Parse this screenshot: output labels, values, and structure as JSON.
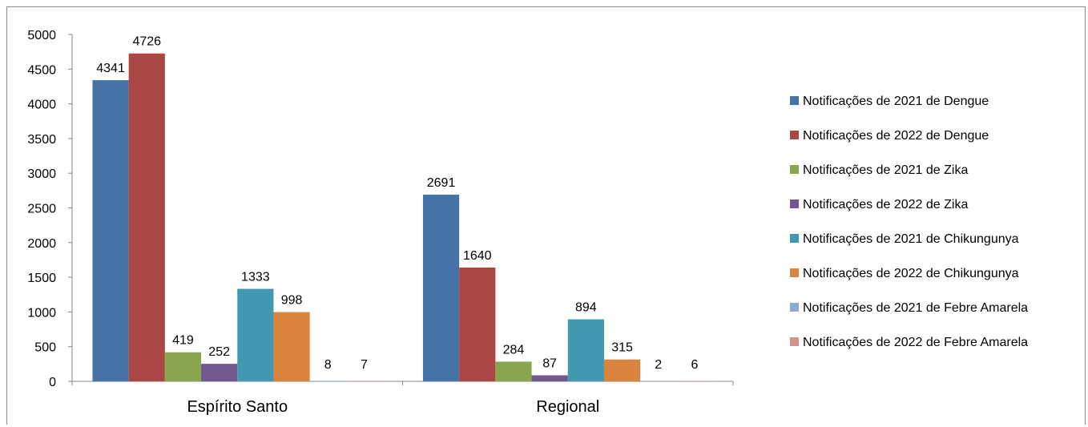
{
  "chart_data": {
    "type": "bar",
    "title": "",
    "xlabel": "",
    "ylabel": "",
    "ylim": [
      0,
      5000
    ],
    "yticks": [
      0,
      500,
      1000,
      1500,
      2000,
      2500,
      3000,
      3500,
      4000,
      4500,
      5000
    ],
    "grid": false,
    "legend_position": "right",
    "categories": [
      "Espírito Santo",
      "Regional"
    ],
    "series": [
      {
        "name": "Notificações de 2021 de Dengue",
        "color": "#4572A7",
        "values": [
          4341,
          2691
        ]
      },
      {
        "name": "Notificações de 2022 de Dengue",
        "color": "#AA4643",
        "values": [
          4726,
          1640
        ]
      },
      {
        "name": "Notificações de 2021 de Zika",
        "color": "#89A54E",
        "values": [
          419,
          284
        ]
      },
      {
        "name": "Notificações de 2022 de Zika",
        "color": "#71588F",
        "values": [
          252,
          87
        ]
      },
      {
        "name": "Notificações de 2021 de Chikungunya",
        "color": "#4198AF",
        "values": [
          1333,
          894
        ]
      },
      {
        "name": "Notificações de 2022 de Chikungunya",
        "color": "#DB843D",
        "values": [
          998,
          315
        ]
      },
      {
        "name": "Notificações de 2021 de Febre Amarela",
        "color": "#93A9CF",
        "values": [
          8,
          2
        ]
      },
      {
        "name": "Notificações de 2022 de Febre Amarela",
        "color": "#D19392",
        "values": [
          7,
          6
        ]
      }
    ]
  }
}
